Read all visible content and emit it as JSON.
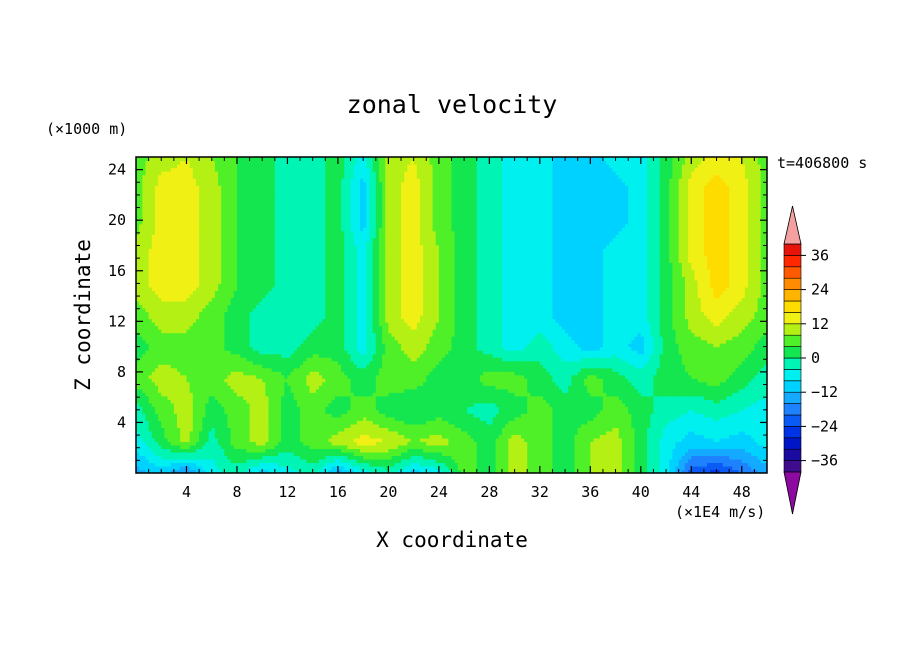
{
  "chart_data": {
    "type": "heatmap",
    "title": "zonal velocity",
    "xlabel": "X coordinate",
    "ylabel": "Z coordinate",
    "y_units": "(×1000 m)",
    "value_units": "(×1E4 m/s)",
    "time_label": "t=406800 s",
    "xlim": [
      0,
      50
    ],
    "ylim": [
      0,
      25
    ],
    "x_ticks": [
      4,
      8,
      12,
      16,
      20,
      24,
      28,
      32,
      36,
      40,
      44,
      48
    ],
    "y_ticks": [
      4,
      8,
      12,
      16,
      20,
      24
    ],
    "colorbar": {
      "ticks": [
        36,
        24,
        12,
        0,
        -12,
        -24,
        -36
      ],
      "levels": [
        {
          "from": -40,
          "to": -36,
          "color": "#3f0c8e"
        },
        {
          "from": -36,
          "to": -32,
          "color": "#1a0aa0"
        },
        {
          "from": -32,
          "to": -28,
          "color": "#0014c8"
        },
        {
          "from": -28,
          "to": -24,
          "color": "#0032e6"
        },
        {
          "from": -24,
          "to": -20,
          "color": "#0a5af5"
        },
        {
          "from": -20,
          "to": -16,
          "color": "#1e82ff"
        },
        {
          "from": -16,
          "to": -12,
          "color": "#14aaff"
        },
        {
          "from": -12,
          "to": -8,
          "color": "#00d2ff"
        },
        {
          "from": -8,
          "to": -4,
          "color": "#00f0f0"
        },
        {
          "from": -4,
          "to": 0,
          "color": "#00f5b4"
        },
        {
          "from": 0,
          "to": 4,
          "color": "#14e650"
        },
        {
          "from": 4,
          "to": 8,
          "color": "#50f028"
        },
        {
          "from": 8,
          "to": 12,
          "color": "#b4f014"
        },
        {
          "from": 12,
          "to": 16,
          "color": "#f0f014"
        },
        {
          "from": 16,
          "to": 20,
          "color": "#ffdc00"
        },
        {
          "from": 20,
          "to": 24,
          "color": "#ffb400"
        },
        {
          "from": 24,
          "to": 28,
          "color": "#ff8c00"
        },
        {
          "from": 28,
          "to": 32,
          "color": "#ff5a00"
        },
        {
          "from": 32,
          "to": 36,
          "color": "#ff2800"
        },
        {
          "from": 36,
          "to": 40,
          "color": "#e6140a"
        }
      ],
      "under_color": "#8c0aa0",
      "over_color": "#f5a0a0"
    },
    "field": {
      "description_of_grid": "value (×1E4 m/s) sampled every 2 units in x (0..50) and every 2.5 units in z (0..25)",
      "x": [
        0,
        2,
        4,
        6,
        8,
        10,
        12,
        14,
        16,
        18,
        20,
        22,
        24,
        26,
        28,
        30,
        32,
        34,
        36,
        38,
        40,
        42,
        44,
        46,
        48,
        50
      ],
      "z": [
        0,
        2.5,
        5,
        7.5,
        10,
        12.5,
        15,
        17.5,
        20,
        22.5,
        25
      ],
      "values": [
        [
          -14,
          -10,
          -18,
          -6,
          -2,
          -10,
          -6,
          -2,
          -14,
          -6,
          -2,
          -10,
          -6,
          6,
          2,
          10,
          6,
          2,
          8,
          10,
          2,
          -6,
          -22,
          -26,
          -20,
          -14
        ],
        [
          -6,
          2,
          10,
          -2,
          6,
          10,
          2,
          6,
          10,
          14,
          12,
          8,
          10,
          6,
          2,
          10,
          6,
          2,
          8,
          10,
          2,
          -6,
          -10,
          -8,
          -10,
          -6
        ],
        [
          -2,
          6,
          10,
          2,
          6,
          10,
          2,
          6,
          2,
          6,
          2,
          0,
          2,
          0,
          -2,
          2,
          6,
          2,
          2,
          6,
          2,
          -2,
          -4,
          -2,
          -4,
          -6
        ],
        [
          6,
          10,
          8,
          6,
          10,
          8,
          4,
          10,
          6,
          2,
          6,
          6,
          2,
          2,
          6,
          6,
          2,
          -2,
          6,
          2,
          -2,
          2,
          4,
          6,
          2,
          -2
        ],
        [
          2,
          6,
          6,
          6,
          2,
          -2,
          -2,
          2,
          2,
          -6,
          6,
          10,
          6,
          2,
          -2,
          -6,
          -2,
          -6,
          -10,
          -6,
          -10,
          2,
          6,
          8,
          6,
          2
        ],
        [
          6,
          10,
          10,
          6,
          2,
          -2,
          -2,
          -2,
          2,
          -6,
          10,
          14,
          8,
          2,
          -2,
          -6,
          -6,
          -10,
          -10,
          -6,
          -6,
          2,
          10,
          14,
          10,
          6
        ],
        [
          10,
          14,
          14,
          10,
          4,
          2,
          -2,
          -2,
          2,
          -6,
          10,
          14,
          8,
          2,
          -2,
          -6,
          -6,
          -10,
          -10,
          -6,
          -6,
          2,
          10,
          18,
          14,
          6
        ],
        [
          10,
          14,
          14,
          10,
          4,
          2,
          -2,
          -2,
          2,
          -6,
          10,
          14,
          8,
          2,
          -2,
          -6,
          -6,
          -10,
          -10,
          -6,
          -6,
          2,
          14,
          18,
          14,
          6
        ],
        [
          6,
          14,
          14,
          10,
          4,
          2,
          -2,
          -2,
          2,
          -10,
          10,
          14,
          6,
          2,
          -2,
          -6,
          -6,
          -10,
          -10,
          -10,
          -6,
          2,
          14,
          18,
          14,
          6
        ],
        [
          6,
          14,
          14,
          10,
          4,
          2,
          -2,
          -2,
          2,
          -10,
          10,
          14,
          6,
          2,
          -2,
          -6,
          -6,
          -10,
          -10,
          -10,
          -6,
          2,
          14,
          18,
          14,
          6
        ],
        [
          6,
          10,
          12,
          8,
          4,
          2,
          -2,
          -2,
          2,
          -6,
          10,
          12,
          6,
          2,
          -2,
          -6,
          -6,
          -10,
          -10,
          -6,
          -6,
          2,
          10,
          14,
          12,
          6
        ]
      ]
    }
  }
}
